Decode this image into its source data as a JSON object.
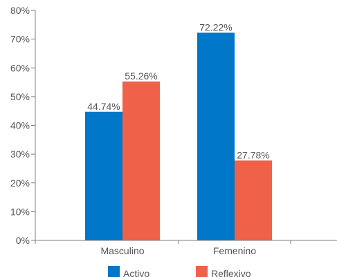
{
  "chart_data": {
    "type": "bar",
    "categories": [
      "Masculino",
      "Femenino"
    ],
    "series": [
      {
        "name": "Activo",
        "values": [
          44.74,
          72.22
        ],
        "color": "#0077c8"
      },
      {
        "name": "Reflexivo",
        "values": [
          55.26,
          27.78
        ],
        "color": "#f0614a"
      }
    ],
    "data_labels": [
      [
        "44.74%",
        "72.22%"
      ],
      [
        "55.26%",
        "27.78%"
      ]
    ],
    "y_ticks": [
      {
        "value": 0,
        "label": "0%"
      },
      {
        "value": 10,
        "label": "10%"
      },
      {
        "value": 20,
        "label": "20%"
      },
      {
        "value": 30,
        "label": "30%"
      },
      {
        "value": 40,
        "label": "40%"
      },
      {
        "value": 50,
        "label": "50%"
      },
      {
        "value": 60,
        "label": "60%"
      },
      {
        "value": 70,
        "label": "70%"
      },
      {
        "value": 80,
        "label": "80%"
      }
    ],
    "ylim": [
      0,
      80
    ],
    "grid": false,
    "legend_position": "bottom",
    "axis_color": "#7f7f7f"
  }
}
